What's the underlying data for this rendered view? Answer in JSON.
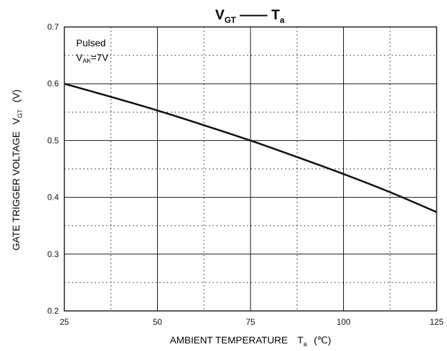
{
  "chart_data": {
    "type": "line",
    "title": {
      "left_symbol": "V",
      "left_subscript": "GT",
      "right_symbol": "T",
      "right_subscript": "a"
    },
    "xlabel": {
      "text": "AMBIENT TEMPERATURE",
      "symbol": "T",
      "subscript": "a",
      "unit": "(℃)"
    },
    "ylabel": {
      "text": "GATE TRIGGER VOLTAGE",
      "symbol": "V",
      "subscript": "GT",
      "unit": "(V)"
    },
    "xlim": [
      25,
      125
    ],
    "ylim": [
      0.2,
      0.7
    ],
    "x_ticks": [
      25,
      50,
      75,
      100,
      125
    ],
    "y_ticks": [
      0.2,
      0.3,
      0.4,
      0.5,
      0.6,
      0.7
    ],
    "x_tick_labels": [
      "25",
      "50",
      "75",
      "100",
      "125"
    ],
    "y_tick_labels": [
      "0.2",
      "0.3",
      "0.4",
      "0.5",
      "0.6",
      "0.7"
    ],
    "grid": {
      "major": true,
      "minor_dotted": true
    },
    "annotation": {
      "line1": "Pulsed",
      "line2_symbol": "V",
      "line2_subscript": "AK",
      "line2_value": "=7V"
    },
    "series": [
      {
        "x": [
          25,
          37.5,
          50,
          62.5,
          75,
          87.5,
          100,
          112.5,
          125
        ],
        "y": [
          0.6,
          0.577,
          0.553,
          0.527,
          0.5,
          0.471,
          0.441,
          0.409,
          0.374
        ]
      }
    ],
    "colors": {
      "line": "#111111",
      "grid": "#111111",
      "text": "#111111"
    }
  }
}
